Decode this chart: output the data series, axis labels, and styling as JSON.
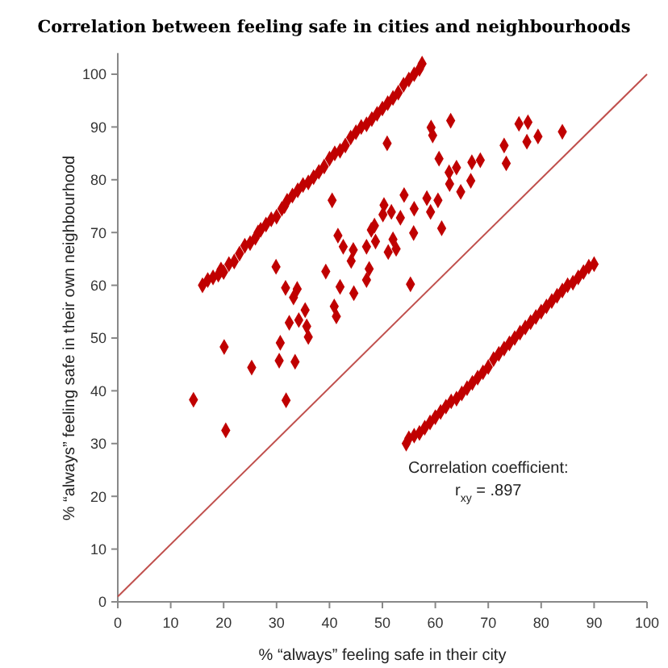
{
  "chart_data": {
    "type": "scatter",
    "title": "Correlation between feeling safe in  cities and neighbourhoods",
    "xlabel": "% “always” feeling safe in their city",
    "ylabel": "% “always” feeling safe in their own neighbourhood",
    "xlim": [
      0,
      100
    ],
    "ylim": [
      0,
      104
    ],
    "xticks": [
      0,
      10,
      20,
      30,
      40,
      50,
      60,
      70,
      80,
      90,
      100
    ],
    "yticks": [
      0,
      10,
      20,
      30,
      40,
      50,
      60,
      70,
      80,
      90,
      100
    ],
    "grid": false,
    "marker": "diamond",
    "annotations": [
      "Correlation coefficient:",
      "r$_{xy}$ =  .897"
    ],
    "series": [
      {
        "color": "#c00000",
        "x": [
          62.9,
          59.2,
          59.5,
          50.9,
          75.8,
          77.5,
          79.4,
          77.3,
          84.0,
          73.0,
          73.4,
          60.7,
          62.6,
          64.0,
          66.9,
          68.5,
          66.7,
          62.7,
          64.8,
          40.5,
          54.1,
          58.4,
          60.5,
          50.3,
          56.0,
          59.1,
          51.7,
          53.4,
          50.1,
          61.2,
          48.5,
          47.9,
          55.9,
          41.6,
          47.0,
          48.7,
          52.0,
          51.1,
          52.6,
          42.6,
          44.5,
          44.1,
          47.5,
          47.0,
          29.9,
          39.3,
          42.0,
          44.6,
          55.3,
          31.7,
          33.9,
          33.2,
          35.4,
          40.9,
          41.3,
          34.2,
          32.4,
          35.7,
          36.0,
          30.7,
          20.1,
          30.5,
          33.5,
          25.3,
          31.8,
          14.3,
          20.4,
          16,
          17,
          18,
          19,
          19.5,
          20,
          21,
          22,
          23,
          24,
          25,
          26,
          26.5,
          27,
          28,
          29,
          30,
          31,
          31.5,
          32,
          33,
          34,
          35,
          36,
          37,
          38,
          39,
          40,
          41,
          42,
          43,
          44,
          45,
          46,
          47,
          48,
          49,
          50,
          51,
          52,
          53,
          54,
          55,
          56,
          57,
          57.5,
          54.5,
          55,
          56,
          57,
          58,
          59,
          60,
          61,
          62,
          63,
          64,
          65,
          66,
          67,
          68,
          69,
          70,
          71,
          72,
          73,
          74,
          75,
          76,
          77,
          78,
          79,
          80,
          81,
          82,
          83,
          84,
          85,
          86,
          87,
          88,
          89,
          90
        ],
        "values": [
          91.2,
          89.9,
          88.4,
          86.9,
          90.6,
          90.9,
          88.2,
          87.2,
          89.1,
          86.5,
          83.1,
          84.0,
          81.4,
          82.3,
          83.3,
          83.7,
          79.8,
          79.2,
          77.7,
          76.1,
          77.1,
          76.5,
          76.1,
          75.2,
          74.5,
          73.9,
          73.9,
          72.8,
          73.4,
          70.8,
          71.3,
          70.5,
          69.9,
          69.4,
          67.3,
          68.3,
          68.7,
          66.3,
          66.9,
          67.3,
          66.7,
          64.6,
          63.1,
          61.0,
          63.5,
          62.6,
          59.7,
          58.5,
          60.2,
          59.5,
          59.3,
          57.7,
          55.3,
          56.0,
          54.1,
          53.4,
          52.9,
          52.2,
          50.2,
          49.1,
          48.3,
          45.7,
          45.5,
          44.4,
          38.2,
          38.3,
          32.5,
          60,
          61,
          61.5,
          62,
          63,
          62.5,
          64,
          64.5,
          66,
          67.5,
          68,
          69,
          70,
          70.5,
          71.5,
          72.5,
          73,
          74.5,
          75,
          76,
          77,
          78,
          79,
          79.5,
          80.5,
          81.5,
          82.5,
          84,
          85,
          85.5,
          86.5,
          88,
          89,
          90,
          90.5,
          91.5,
          92.5,
          93.5,
          94.5,
          95.5,
          96.5,
          98,
          99,
          100,
          101,
          102,
          30,
          31,
          31.5,
          32,
          33,
          34,
          35,
          36,
          37,
          38,
          38.5,
          39.5,
          40.5,
          41.5,
          42.5,
          43.5,
          44.5,
          46,
          47,
          48,
          49,
          50,
          51,
          52,
          53,
          54,
          55,
          56,
          57,
          58,
          59,
          60,
          60.5,
          61.5,
          62.5,
          63.5,
          64
        ]
      },
      {
        "type": "line",
        "color": "#c0504d",
        "x": [
          0,
          100
        ],
        "values": [
          1,
          100
        ],
        "marker": "none"
      }
    ]
  }
}
